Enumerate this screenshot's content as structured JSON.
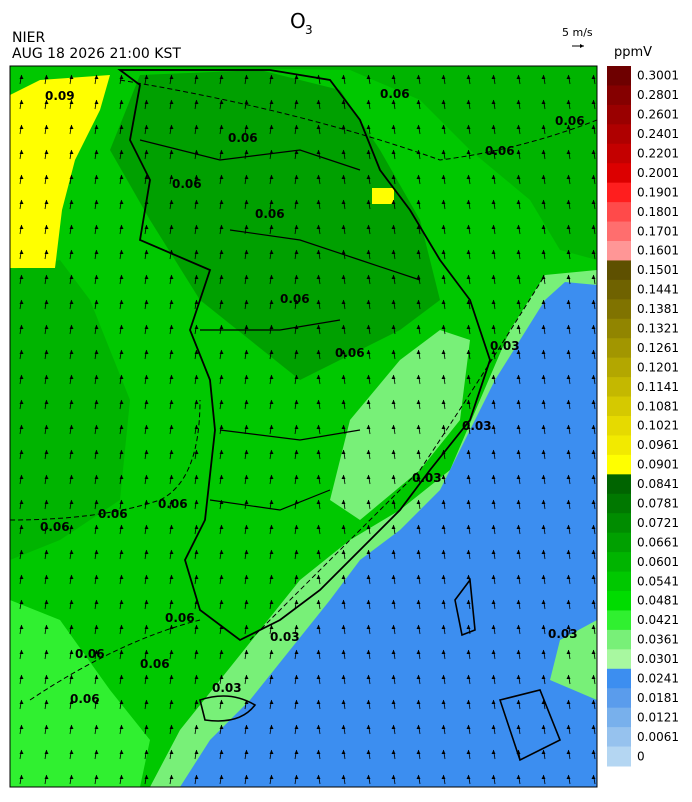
{
  "header": {
    "title": "O",
    "title_subscript": "3",
    "agency": "NIER",
    "datetime": "AUG 18 2026 21:00 KST",
    "wind_scale": "5 m/s",
    "unit": "ppmV"
  },
  "legend": {
    "labels": [
      0.3001,
      0.2801,
      0.2601,
      0.2401,
      0.2201,
      0.2001,
      0.1901,
      0.1801,
      0.1701,
      0.1601,
      0.1501,
      0.1441,
      0.1381,
      0.1321,
      0.1261,
      0.1201,
      0.1141,
      0.1081,
      0.1021,
      0.0961,
      0.0901,
      0.0841,
      0.0781,
      0.0721,
      0.0661,
      0.0601,
      0.0541,
      0.0481,
      0.0421,
      0.0361,
      0.0301,
      0.0241,
      0.0181,
      0.0121,
      0.0061,
      0
    ],
    "colors": [
      "#6e0000",
      "#850000",
      "#9a0000",
      "#af0000",
      "#c40000",
      "#dc0000",
      "#ff1e1e",
      "#ff4a4a",
      "#ff6e6e",
      "#ff9696",
      "#5e5000",
      "#6f6200",
      "#807300",
      "#918500",
      "#a29600",
      "#b3a700",
      "#c4b800",
      "#d5c900",
      "#e6da00",
      "#f2ea00",
      "#ffff00",
      "#006400",
      "#007800",
      "#008c00",
      "#00a000",
      "#00b400",
      "#00c800",
      "#00dc00",
      "#30f030",
      "#78f078",
      "#a8f8a0",
      "#3c8ef0",
      "#5a9cec",
      "#78b0ec",
      "#96c2ee",
      "#b4d6f2"
    ]
  },
  "map": {
    "contour_labels": [
      "0.09",
      "0.06",
      "0.06",
      "0.06",
      "0.06",
      "0.06",
      "0.06",
      "0.06",
      "0.06",
      "0.03",
      "0.03",
      "0.03",
      "0.06",
      "0.06",
      "0.06",
      "0.06",
      "0.03",
      "0.06",
      "0.06",
      "0.06",
      "0.03",
      "0.03"
    ]
  }
}
